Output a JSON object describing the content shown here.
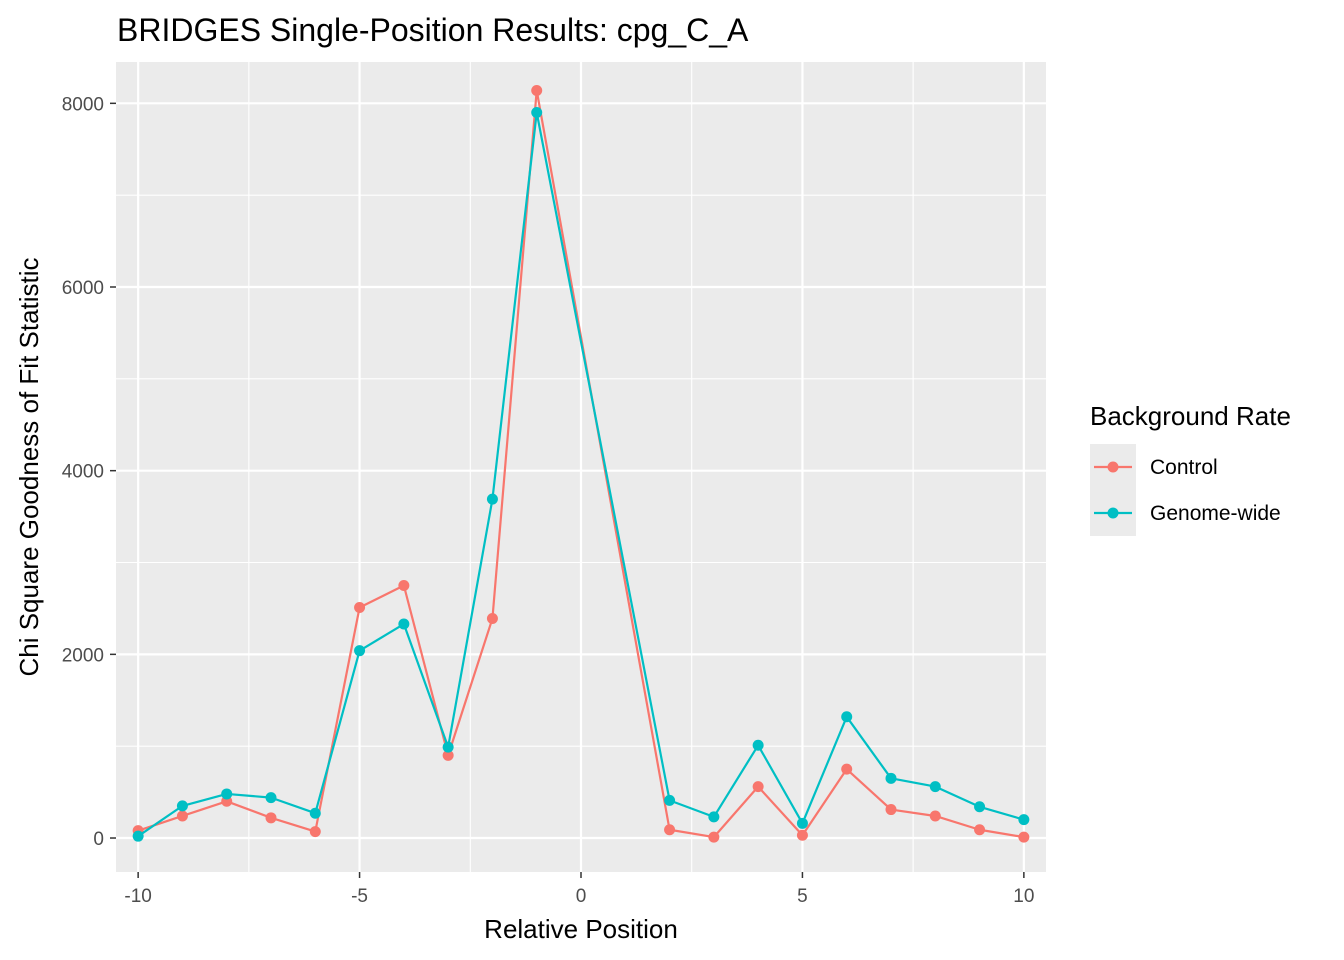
{
  "chart_data": {
    "type": "line",
    "title": "BRIDGES Single-Position Results: cpg_C_A",
    "xlabel": "Relative Position",
    "ylabel": "Chi Square Goodness of Fit Statistic",
    "xlim": [
      -10.5,
      10.5
    ],
    "ylim": [
      -370,
      8450
    ],
    "x_ticks": [
      -10,
      -5,
      0,
      5,
      10
    ],
    "x_tick_labels": [
      "-10",
      "-5",
      "0",
      "5",
      "10"
    ],
    "y_ticks": [
      0,
      2000,
      4000,
      6000,
      8000
    ],
    "y_tick_labels": [
      "0",
      "2000",
      "4000",
      "6000",
      "8000"
    ],
    "grid": true,
    "legend": {
      "title": "Background Rate",
      "position": "right"
    },
    "x": [
      -10,
      -9,
      -8,
      -7,
      -6,
      -5,
      -4,
      -3,
      -2,
      -1,
      2,
      3,
      4,
      5,
      6,
      7,
      8,
      9,
      10
    ],
    "series": [
      {
        "name": "Control",
        "color": "#F8766D",
        "values": [
          80,
          240,
          400,
          220,
          70,
          2510,
          2750,
          900,
          2390,
          8140,
          90,
          10,
          560,
          30,
          750,
          310,
          240,
          90,
          10
        ]
      },
      {
        "name": "Genome-wide",
        "color": "#00BFC4",
        "values": [
          20,
          350,
          480,
          440,
          270,
          2040,
          2330,
          990,
          3690,
          7900,
          410,
          230,
          1010,
          160,
          1320,
          650,
          560,
          340,
          200
        ]
      }
    ]
  }
}
